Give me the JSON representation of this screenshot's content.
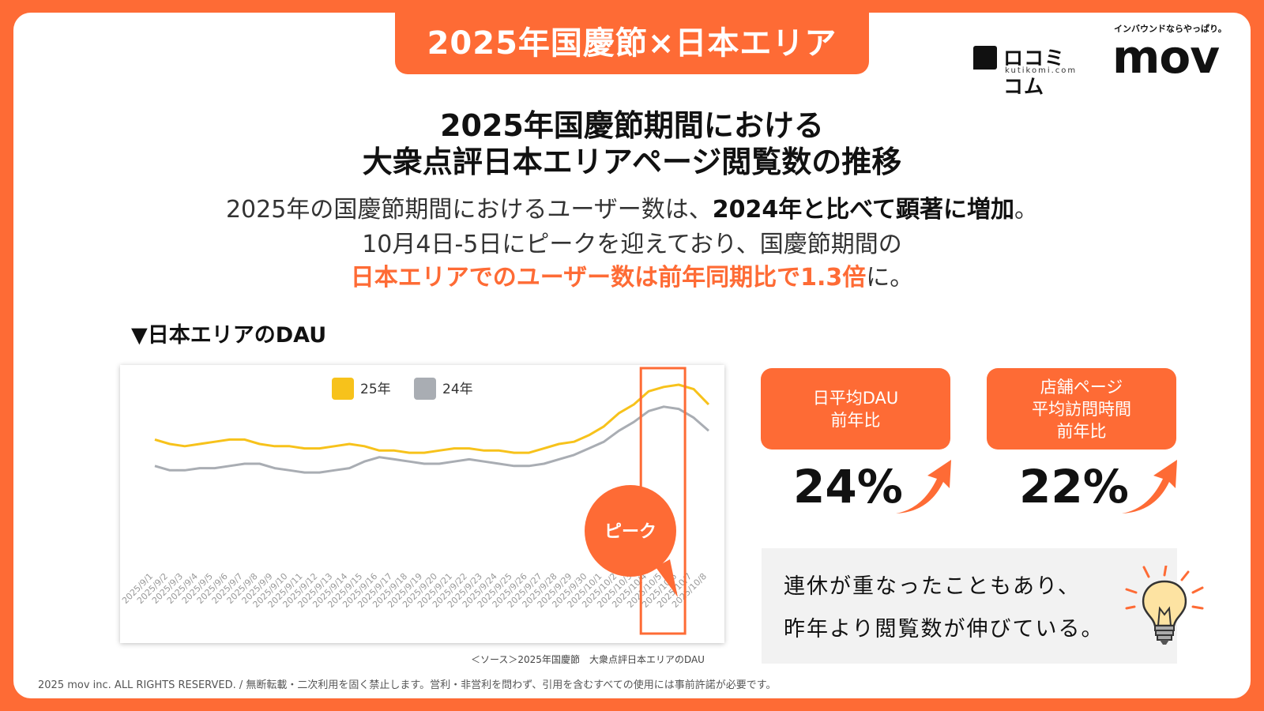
{
  "header": {
    "tab_title": "2025年国慶節×日本エリア",
    "logo_kutikomi": "ロコミコム",
    "logo_kutikomi_sub": "kutikomi.com",
    "logo_mov_tagline": "インバウンドならやっぱり。",
    "logo_mov": "mov"
  },
  "title": {
    "line1": "2025年国慶節期間における",
    "line2": "大衆点評日本エリアページ閲覧数の推移"
  },
  "description": {
    "line1_a": "2025年の国慶節期間におけるユーザー数は、",
    "line1_b": "2024年と比べて顕著に増加",
    "line1_c": "。",
    "line2": "10月4日-5日にピークを迎えており、国慶節期間の",
    "line3_a": "日本エリアでのユーザー数は前年同期比で1.3倍",
    "line3_b": "に。"
  },
  "section_title": "▼日本エリアのDAU",
  "chart_data": {
    "type": "line",
    "x": [
      "2025/9/1",
      "2025/9/2",
      "2025/9/3",
      "2025/9/4",
      "2025/9/5",
      "2025/9/6",
      "2025/9/7",
      "2025/9/8",
      "2025/9/9",
      "2025/9/10",
      "2025/9/11",
      "2025/9/12",
      "2025/9/13",
      "2025/9/14",
      "2025/9/15",
      "2025/9/16",
      "2025/9/17",
      "2025/9/18",
      "2025/9/19",
      "2025/9/20",
      "2025/9/21",
      "2025/9/22",
      "2025/9/23",
      "2025/9/24",
      "2025/9/25",
      "2025/9/26",
      "2025/9/27",
      "2025/9/28",
      "2025/9/29",
      "2025/9/30",
      "2025/10/1",
      "2025/10/2",
      "2025/10/3",
      "2025/10/4",
      "2025/10/5",
      "2025/10/6",
      "2025/10/7",
      "2025/10/8"
    ],
    "series": [
      {
        "name": "25年",
        "color": "#f7c21b",
        "values": [
          56,
          54,
          53,
          54,
          55,
          56,
          56,
          54,
          53,
          53,
          52,
          52,
          53,
          54,
          53,
          51,
          51,
          50,
          50,
          51,
          52,
          52,
          51,
          51,
          50,
          50,
          52,
          54,
          55,
          58,
          62,
          68,
          72,
          78,
          80,
          81,
          79,
          72
        ]
      },
      {
        "name": "24年",
        "color": "#a9adb3",
        "values": [
          44,
          42,
          42,
          43,
          43,
          44,
          45,
          45,
          43,
          42,
          41,
          41,
          42,
          43,
          46,
          48,
          47,
          46,
          45,
          45,
          46,
          47,
          46,
          45,
          44,
          44,
          45,
          47,
          49,
          52,
          55,
          60,
          64,
          69,
          71,
          70,
          66,
          60
        ]
      }
    ],
    "ylim": [
      0,
      90
    ],
    "legend": "top-center",
    "grid": false,
    "annotation": "ピーク",
    "highlight": [
      "2025/10/4",
      "2025/10/6"
    ]
  },
  "source": "＜ソース＞2025年国慶節　大衆点評日本エリアのDAU",
  "kpis": [
    {
      "label_lines": [
        "日平均DAU",
        "前年比"
      ],
      "value": "24%"
    },
    {
      "label_lines": [
        "店舗ページ",
        "平均訪問時間",
        "前年比"
      ],
      "value": "22%"
    }
  ],
  "note": {
    "line1": "連休が重なったこともあり、",
    "line2": "昨年より閲覧数が伸びている。"
  },
  "icons": {
    "arrow": "up-right-arrow-icon",
    "bulb": "lightbulb-icon"
  },
  "colors": {
    "accent": "#fe6b35"
  },
  "footer": "2025 mov inc. ALL RIGHTS RESERVED. / 無断転載・二次利用を固く禁止します。営利・非営利を問わず、引用を含むすべての使用には事前許諾が必要です。"
}
